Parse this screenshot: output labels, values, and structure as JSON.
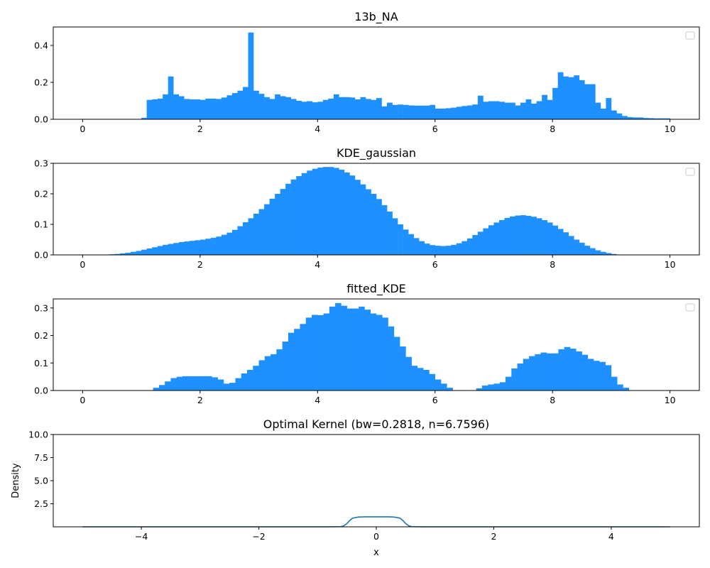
{
  "chart_data": [
    {
      "type": "bar",
      "title": "13b_NA",
      "xlabel": "",
      "ylabel": "",
      "xlim": [
        -0.5,
        10.5
      ],
      "ylim": [
        0,
        0.5
      ],
      "xticks": [
        "0",
        "2",
        "4",
        "6",
        "8",
        "10"
      ],
      "yticks": [
        "0.0",
        "0.2",
        "0.4"
      ],
      "bin_range": [
        0,
        10
      ],
      "color": "#1e90ff",
      "legend": "top-right (empty)",
      "values": [
        0.002,
        0.002,
        0.002,
        0.002,
        0.002,
        0.002,
        0.002,
        0.002,
        0.002,
        0.002,
        0.002,
        0.008,
        0.105,
        0.108,
        0.112,
        0.135,
        0.232,
        0.135,
        0.125,
        0.11,
        0.108,
        0.108,
        0.105,
        0.112,
        0.112,
        0.11,
        0.118,
        0.13,
        0.142,
        0.155,
        0.175,
        0.47,
        0.155,
        0.138,
        0.12,
        0.11,
        0.135,
        0.125,
        0.12,
        0.11,
        0.1,
        0.095,
        0.098,
        0.092,
        0.095,
        0.105,
        0.112,
        0.135,
        0.12,
        0.12,
        0.118,
        0.108,
        0.12,
        0.11,
        0.105,
        0.115,
        0.07,
        0.09,
        0.078,
        0.08,
        0.078,
        0.075,
        0.074,
        0.074,
        0.074,
        0.078,
        0.058,
        0.058,
        0.06,
        0.063,
        0.068,
        0.072,
        0.075,
        0.08,
        0.128,
        0.095,
        0.098,
        0.098,
        0.095,
        0.09,
        0.09,
        0.075,
        0.09,
        0.108,
        0.085,
        0.098,
        0.132,
        0.105,
        0.17,
        0.255,
        0.232,
        0.228,
        0.238,
        0.212,
        0.19,
        0.19,
        0.09,
        0.058,
        0.115,
        0.048,
        0.032,
        0.018,
        0.012,
        0.01,
        0.01,
        0.007,
        0.006,
        0.005,
        0.005,
        0.005
      ]
    },
    {
      "type": "bar",
      "title": "KDE_gaussian",
      "xlabel": "",
      "ylabel": "",
      "xlim": [
        -0.5,
        10.5
      ],
      "ylim": [
        0,
        0.3
      ],
      "xticks": [
        "0",
        "2",
        "4",
        "6",
        "8",
        "10"
      ],
      "yticks": [
        "0.0",
        "0.1",
        "0.2",
        "0.3"
      ],
      "bin_range": [
        0,
        10
      ],
      "color": "#1e90ff",
      "legend": "top-right (empty)",
      "values": [
        0.0,
        0.0,
        0.0,
        0.0,
        0.001,
        0.002,
        0.003,
        0.005,
        0.007,
        0.01,
        0.013,
        0.017,
        0.021,
        0.025,
        0.029,
        0.033,
        0.036,
        0.039,
        0.042,
        0.044,
        0.046,
        0.048,
        0.05,
        0.053,
        0.056,
        0.06,
        0.066,
        0.073,
        0.082,
        0.094,
        0.107,
        0.12,
        0.135,
        0.15,
        0.166,
        0.184,
        0.2,
        0.216,
        0.233,
        0.247,
        0.258,
        0.268,
        0.276,
        0.282,
        0.286,
        0.288,
        0.288,
        0.285,
        0.279,
        0.27,
        0.26,
        0.246,
        0.231,
        0.215,
        0.2,
        0.183,
        0.163,
        0.142,
        0.12,
        0.1,
        0.083,
        0.068,
        0.055,
        0.045,
        0.037,
        0.032,
        0.03,
        0.029,
        0.03,
        0.033,
        0.038,
        0.045,
        0.054,
        0.065,
        0.076,
        0.087,
        0.097,
        0.106,
        0.114,
        0.121,
        0.126,
        0.129,
        0.13,
        0.128,
        0.125,
        0.12,
        0.114,
        0.106,
        0.096,
        0.085,
        0.074,
        0.062,
        0.05,
        0.04,
        0.03,
        0.022,
        0.015,
        0.01,
        0.006,
        0.003,
        0.001,
        0.001,
        0.0,
        0.0,
        0.0,
        0.0,
        0.0,
        0.0,
        0.0,
        0.0
      ]
    },
    {
      "type": "bar",
      "title": "fitted_KDE",
      "xlabel": "",
      "ylabel": "",
      "xlim": [
        -0.5,
        10.5
      ],
      "ylim": [
        0,
        0.333
      ],
      "xticks": [
        "0",
        "2",
        "4",
        "6",
        "8",
        "10"
      ],
      "yticks": [
        "0.0",
        "0.1",
        "0.2",
        "0.3"
      ],
      "bin_range": [
        0,
        10
      ],
      "color": "#1e90ff",
      "legend": "top-right (empty)",
      "values": [
        0.0,
        0.0,
        0.0,
        0.0,
        0.0,
        0.0,
        0.0,
        0.0,
        0.0,
        0.0,
        0.0,
        0.0,
        0.01,
        0.02,
        0.033,
        0.045,
        0.05,
        0.052,
        0.052,
        0.052,
        0.052,
        0.052,
        0.048,
        0.04,
        0.025,
        0.028,
        0.045,
        0.062,
        0.075,
        0.09,
        0.11,
        0.125,
        0.132,
        0.15,
        0.178,
        0.21,
        0.224,
        0.242,
        0.265,
        0.275,
        0.274,
        0.28,
        0.305,
        0.318,
        0.308,
        0.298,
        0.298,
        0.305,
        0.294,
        0.28,
        0.275,
        0.265,
        0.233,
        0.195,
        0.16,
        0.122,
        0.09,
        0.082,
        0.075,
        0.06,
        0.04,
        0.025,
        0.01,
        0.0,
        0.0,
        0.0,
        0.0,
        0.008,
        0.018,
        0.022,
        0.025,
        0.03,
        0.05,
        0.08,
        0.098,
        0.115,
        0.125,
        0.132,
        0.138,
        0.135,
        0.135,
        0.15,
        0.158,
        0.152,
        0.142,
        0.13,
        0.115,
        0.108,
        0.104,
        0.092,
        0.05,
        0.022,
        0.01,
        0.0,
        0.0,
        0.0,
        0.0,
        0.0,
        0.0,
        0.0
      ]
    },
    {
      "type": "line",
      "title": "Optimal Kernel (bw=0.2818, n=6.7596)",
      "xlabel": "x",
      "ylabel": "Density",
      "xlim": [
        -5.5,
        5.5
      ],
      "ylim": [
        0,
        10
      ],
      "xticks": [
        "−4",
        "−2",
        "0",
        "2",
        "4"
      ],
      "yticks": [
        "2.5",
        "5.0",
        "7.5",
        "10.0"
      ],
      "color": "#1f77b4",
      "series": [
        {
          "x": [
            -5,
            -0.8,
            -0.6,
            -0.55,
            -0.5,
            -0.45,
            -0.4,
            -0.3,
            -0.2,
            -0.1,
            0,
            0.1,
            0.2,
            0.3,
            0.4,
            0.45,
            0.5,
            0.55,
            0.6,
            0.8,
            5
          ],
          "values": [
            0,
            0,
            0.02,
            0.12,
            0.35,
            0.7,
            0.95,
            1.06,
            1.08,
            1.08,
            1.08,
            1.08,
            1.08,
            1.06,
            0.95,
            0.7,
            0.35,
            0.12,
            0.02,
            0,
            0
          ]
        }
      ]
    }
  ]
}
